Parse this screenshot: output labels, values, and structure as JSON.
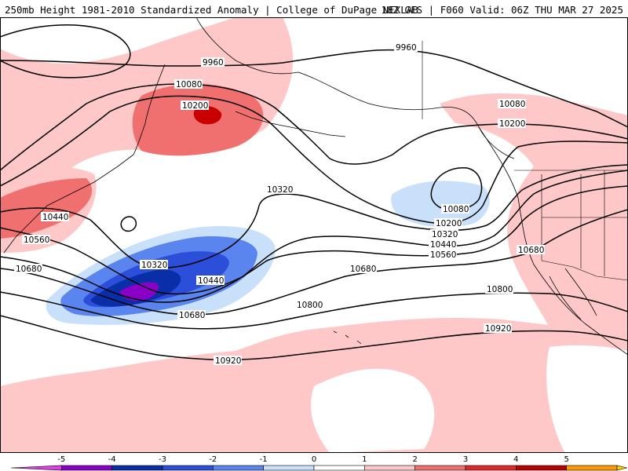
{
  "header": {
    "title_left": "250mb Height 1981-2010 Standardized Anomaly | College of DuPage NEXLAB",
    "title_right": "18Z GFS | F060 Valid: 06Z THU MAR 27 2025"
  },
  "contour_labels": {
    "c9960": "9960",
    "c10080": "10080",
    "c10200": "10200",
    "c10320": "10320",
    "c10440": "10440",
    "c10560": "10560",
    "c10680": "10680",
    "c10800": "10800",
    "c10920": "10920"
  },
  "colorbar": {
    "ticks": [
      "-5",
      "-4",
      "-3",
      "-2",
      "-1",
      "0",
      "1",
      "2",
      "3",
      "4",
      "5"
    ],
    "colors": [
      "#e040e0",
      "#8a00c8",
      "#0a2ea8",
      "#2b4fd8",
      "#5a84ee",
      "#c8e0fa",
      "#ffffff",
      "#ffc8c8",
      "#f07070",
      "#e02828",
      "#b80000",
      "#ff9a00",
      "#ffd000"
    ]
  },
  "colors": {
    "land_outline": "#000000",
    "positive_light": "#ffc8c8",
    "positive_mid": "#f07070",
    "positive_strong": "#c80000",
    "negative_light": "#c8e0fa",
    "negative_mid": "#5a84ee",
    "negative_strong": "#2b4fd8",
    "negative_deep": "#0a2ea8",
    "negative_extreme": "#8a00c8"
  }
}
